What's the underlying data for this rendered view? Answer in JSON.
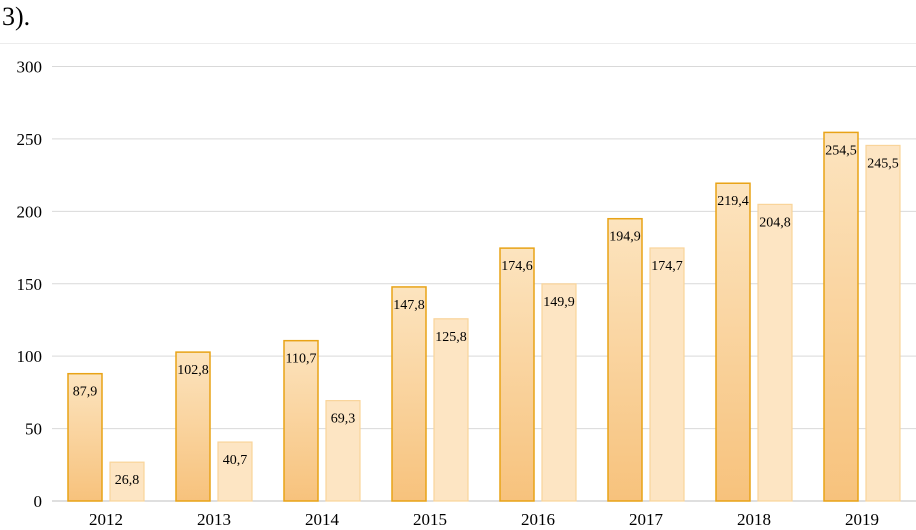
{
  "header": {
    "text": "3)."
  },
  "chart_data": {
    "type": "bar",
    "categories": [
      "2012",
      "2013",
      "2014",
      "2015",
      "2016",
      "2017",
      "2018",
      "2019"
    ],
    "series": [
      {
        "values": [
          87.9,
          102.8,
          110.7,
          147.8,
          174.6,
          194.9,
          219.4,
          254.5
        ],
        "labels": [
          "87,9",
          "102,8",
          "110,7",
          "147,8",
          "174,6",
          "194,9",
          "219,4",
          "254,5"
        ],
        "fill_top": "#fce4bf",
        "fill_bottom": "#f7c27c",
        "stroke": "#e8a317"
      },
      {
        "values": [
          26.8,
          40.7,
          69.3,
          125.8,
          149.9,
          174.7,
          204.8,
          245.5
        ],
        "labels": [
          "26,8",
          "40,7",
          "69,3",
          "125,8",
          "149,9",
          "174,7",
          "204,8",
          "245,5"
        ],
        "fill": "#fde5c3",
        "stroke": "#f9d49a"
      }
    ],
    "y_ticks": [
      "0",
      "50",
      "100",
      "150",
      "200",
      "250",
      "300"
    ],
    "ylim": [
      0,
      300
    ],
    "grid": true,
    "legend": "none"
  }
}
